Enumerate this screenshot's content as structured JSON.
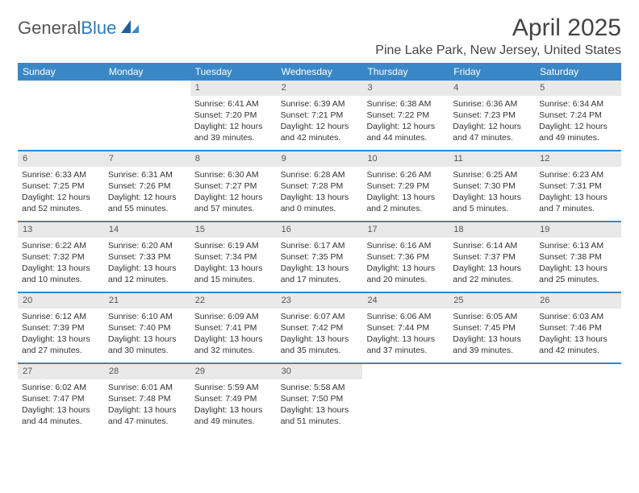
{
  "brand": {
    "name1": "General",
    "name2": "Blue"
  },
  "title": "April 2025",
  "location": "Pine Lake Park, New Jersey, United States",
  "colors": {
    "header_bg": "#3a87c7",
    "header_text": "#ffffff",
    "daynum_bg": "#e9e9e9",
    "week_border": "#3a87c7",
    "text": "#333333",
    "brand_gray": "#555555",
    "brand_blue": "#2f7abf",
    "background": "#ffffff"
  },
  "day_headers": [
    "Sunday",
    "Monday",
    "Tuesday",
    "Wednesday",
    "Thursday",
    "Friday",
    "Saturday"
  ],
  "weeks": [
    [
      {
        "n": "",
        "sr": "",
        "ss": "",
        "dl": ""
      },
      {
        "n": "",
        "sr": "",
        "ss": "",
        "dl": ""
      },
      {
        "n": "1",
        "sr": "Sunrise: 6:41 AM",
        "ss": "Sunset: 7:20 PM",
        "dl": "Daylight: 12 hours and 39 minutes."
      },
      {
        "n": "2",
        "sr": "Sunrise: 6:39 AM",
        "ss": "Sunset: 7:21 PM",
        "dl": "Daylight: 12 hours and 42 minutes."
      },
      {
        "n": "3",
        "sr": "Sunrise: 6:38 AM",
        "ss": "Sunset: 7:22 PM",
        "dl": "Daylight: 12 hours and 44 minutes."
      },
      {
        "n": "4",
        "sr": "Sunrise: 6:36 AM",
        "ss": "Sunset: 7:23 PM",
        "dl": "Daylight: 12 hours and 47 minutes."
      },
      {
        "n": "5",
        "sr": "Sunrise: 6:34 AM",
        "ss": "Sunset: 7:24 PM",
        "dl": "Daylight: 12 hours and 49 minutes."
      }
    ],
    [
      {
        "n": "6",
        "sr": "Sunrise: 6:33 AM",
        "ss": "Sunset: 7:25 PM",
        "dl": "Daylight: 12 hours and 52 minutes."
      },
      {
        "n": "7",
        "sr": "Sunrise: 6:31 AM",
        "ss": "Sunset: 7:26 PM",
        "dl": "Daylight: 12 hours and 55 minutes."
      },
      {
        "n": "8",
        "sr": "Sunrise: 6:30 AM",
        "ss": "Sunset: 7:27 PM",
        "dl": "Daylight: 12 hours and 57 minutes."
      },
      {
        "n": "9",
        "sr": "Sunrise: 6:28 AM",
        "ss": "Sunset: 7:28 PM",
        "dl": "Daylight: 13 hours and 0 minutes."
      },
      {
        "n": "10",
        "sr": "Sunrise: 6:26 AM",
        "ss": "Sunset: 7:29 PM",
        "dl": "Daylight: 13 hours and 2 minutes."
      },
      {
        "n": "11",
        "sr": "Sunrise: 6:25 AM",
        "ss": "Sunset: 7:30 PM",
        "dl": "Daylight: 13 hours and 5 minutes."
      },
      {
        "n": "12",
        "sr": "Sunrise: 6:23 AM",
        "ss": "Sunset: 7:31 PM",
        "dl": "Daylight: 13 hours and 7 minutes."
      }
    ],
    [
      {
        "n": "13",
        "sr": "Sunrise: 6:22 AM",
        "ss": "Sunset: 7:32 PM",
        "dl": "Daylight: 13 hours and 10 minutes."
      },
      {
        "n": "14",
        "sr": "Sunrise: 6:20 AM",
        "ss": "Sunset: 7:33 PM",
        "dl": "Daylight: 13 hours and 12 minutes."
      },
      {
        "n": "15",
        "sr": "Sunrise: 6:19 AM",
        "ss": "Sunset: 7:34 PM",
        "dl": "Daylight: 13 hours and 15 minutes."
      },
      {
        "n": "16",
        "sr": "Sunrise: 6:17 AM",
        "ss": "Sunset: 7:35 PM",
        "dl": "Daylight: 13 hours and 17 minutes."
      },
      {
        "n": "17",
        "sr": "Sunrise: 6:16 AM",
        "ss": "Sunset: 7:36 PM",
        "dl": "Daylight: 13 hours and 20 minutes."
      },
      {
        "n": "18",
        "sr": "Sunrise: 6:14 AM",
        "ss": "Sunset: 7:37 PM",
        "dl": "Daylight: 13 hours and 22 minutes."
      },
      {
        "n": "19",
        "sr": "Sunrise: 6:13 AM",
        "ss": "Sunset: 7:38 PM",
        "dl": "Daylight: 13 hours and 25 minutes."
      }
    ],
    [
      {
        "n": "20",
        "sr": "Sunrise: 6:12 AM",
        "ss": "Sunset: 7:39 PM",
        "dl": "Daylight: 13 hours and 27 minutes."
      },
      {
        "n": "21",
        "sr": "Sunrise: 6:10 AM",
        "ss": "Sunset: 7:40 PM",
        "dl": "Daylight: 13 hours and 30 minutes."
      },
      {
        "n": "22",
        "sr": "Sunrise: 6:09 AM",
        "ss": "Sunset: 7:41 PM",
        "dl": "Daylight: 13 hours and 32 minutes."
      },
      {
        "n": "23",
        "sr": "Sunrise: 6:07 AM",
        "ss": "Sunset: 7:42 PM",
        "dl": "Daylight: 13 hours and 35 minutes."
      },
      {
        "n": "24",
        "sr": "Sunrise: 6:06 AM",
        "ss": "Sunset: 7:44 PM",
        "dl": "Daylight: 13 hours and 37 minutes."
      },
      {
        "n": "25",
        "sr": "Sunrise: 6:05 AM",
        "ss": "Sunset: 7:45 PM",
        "dl": "Daylight: 13 hours and 39 minutes."
      },
      {
        "n": "26",
        "sr": "Sunrise: 6:03 AM",
        "ss": "Sunset: 7:46 PM",
        "dl": "Daylight: 13 hours and 42 minutes."
      }
    ],
    [
      {
        "n": "27",
        "sr": "Sunrise: 6:02 AM",
        "ss": "Sunset: 7:47 PM",
        "dl": "Daylight: 13 hours and 44 minutes."
      },
      {
        "n": "28",
        "sr": "Sunrise: 6:01 AM",
        "ss": "Sunset: 7:48 PM",
        "dl": "Daylight: 13 hours and 47 minutes."
      },
      {
        "n": "29",
        "sr": "Sunrise: 5:59 AM",
        "ss": "Sunset: 7:49 PM",
        "dl": "Daylight: 13 hours and 49 minutes."
      },
      {
        "n": "30",
        "sr": "Sunrise: 5:58 AM",
        "ss": "Sunset: 7:50 PM",
        "dl": "Daylight: 13 hours and 51 minutes."
      },
      {
        "n": "",
        "sr": "",
        "ss": "",
        "dl": ""
      },
      {
        "n": "",
        "sr": "",
        "ss": "",
        "dl": ""
      },
      {
        "n": "",
        "sr": "",
        "ss": "",
        "dl": ""
      }
    ]
  ]
}
